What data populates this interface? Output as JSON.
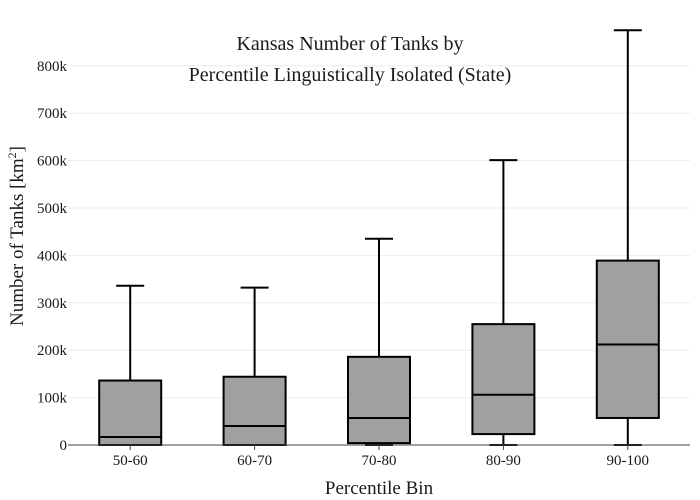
{
  "chart_data": {
    "type": "box",
    "title": [
      "Kansas Number of Tanks by",
      "Percentile Linguistically Isolated (State)"
    ],
    "xlabel": "Percentile Bin",
    "ylabel": "Number of Tanks  [km",
    "ylabel_sup": "2",
    "ylabel_close": "]",
    "ylim": [
      0,
      870000
    ],
    "yticks": [
      0,
      100000,
      200000,
      300000,
      400000,
      500000,
      600000,
      700000,
      800000
    ],
    "ytick_labels": [
      "0",
      "100k",
      "200k",
      "300k",
      "400k",
      "500k",
      "600k",
      "700k",
      "800k"
    ],
    "grid": true,
    "box_color": "#a0a0a0",
    "line_color": "#000000",
    "categories": [
      "50-60",
      "60-70",
      "70-80",
      "80-90",
      "90-100"
    ],
    "boxes": [
      {
        "min": 0,
        "q1": 0,
        "median": 17000,
        "q3": 136000,
        "max": 336000
      },
      {
        "min": 0,
        "q1": 0,
        "median": 40000,
        "q3": 144000,
        "max": 332000
      },
      {
        "min": 0,
        "q1": 4000,
        "median": 57000,
        "q3": 186000,
        "max": 435000
      },
      {
        "min": 0,
        "q1": 23000,
        "median": 106000,
        "q3": 255000,
        "max": 601000
      },
      {
        "min": 0,
        "q1": 57000,
        "median": 212000,
        "q3": 389000,
        "max": 875000
      }
    ]
  }
}
